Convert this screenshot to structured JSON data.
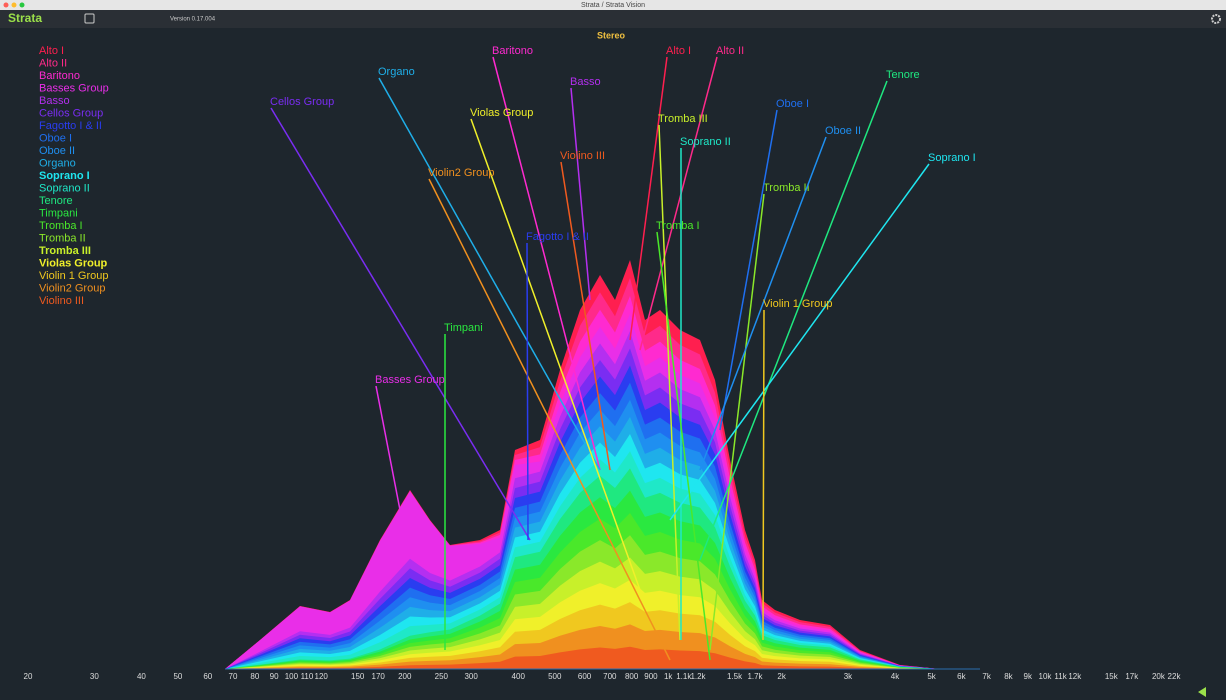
{
  "window": {
    "title": "Strata / Strata Vision"
  },
  "toolbar": {
    "app_name": "Strata",
    "version": "Version 0.17.004"
  },
  "chart_data": {
    "type": "area",
    "title": "Stereo",
    "log_x": true,
    "stacked": true,
    "xlim": [
      20,
      22000
    ],
    "xticks": [
      20,
      30,
      40,
      50,
      60,
      70,
      80,
      90,
      100,
      110,
      120,
      150,
      170,
      200,
      250,
      300,
      400,
      500,
      600,
      700,
      800,
      900,
      {
        "value": 1000,
        "label": "1k"
      },
      {
        "value": 1100,
        "label": "1.1k"
      },
      {
        "value": 1200,
        "label": "1.2k"
      },
      {
        "value": 1500,
        "label": "1.5k"
      },
      {
        "value": 1700,
        "label": "1.7k"
      },
      {
        "value": 2000,
        "label": "2k"
      },
      {
        "value": 3000,
        "label": "3k"
      },
      {
        "value": 4000,
        "label": "4k"
      },
      {
        "value": 5000,
        "label": "5k"
      },
      {
        "value": 6000,
        "label": "6k"
      },
      {
        "value": 7000,
        "label": "7k"
      },
      {
        "value": 8000,
        "label": "8k"
      },
      {
        "value": 9000,
        "label": "9k"
      },
      {
        "value": 10000,
        "label": "10k"
      },
      {
        "value": 11000,
        "label": "11k"
      },
      {
        "value": 12000,
        "label": "12k"
      },
      {
        "value": 15000,
        "label": "15k"
      },
      {
        "value": 17000,
        "label": "17k"
      },
      {
        "value": 20000,
        "label": "20k"
      },
      {
        "value": 22000,
        "label": "22k"
      }
    ],
    "series": [
      {
        "name": "Alto I",
        "color": "#ff1f4f"
      },
      {
        "name": "Alto II",
        "color": "#ff2a8a"
      },
      {
        "name": "Baritono",
        "color": "#ff2ad0"
      },
      {
        "name": "Basses Group",
        "color": "#e92ee8"
      },
      {
        "name": "Basso",
        "color": "#b42ff0"
      },
      {
        "name": "Cellos Group",
        "color": "#7a2df2"
      },
      {
        "name": "Fagotto I & II",
        "color": "#2a3df0"
      },
      {
        "name": "Oboe I",
        "color": "#1f6ff0"
      },
      {
        "name": "Oboe II",
        "color": "#1f8ff0"
      },
      {
        "name": "Organo",
        "color": "#1faee8"
      },
      {
        "name": "Soprano I",
        "color": "#1fe6f0"
      },
      {
        "name": "Soprano II",
        "color": "#1fe8c8"
      },
      {
        "name": "Tenore",
        "color": "#1fe880"
      },
      {
        "name": "Timpani",
        "color": "#2ae840"
      },
      {
        "name": "Tromba I",
        "color": "#4ae82a"
      },
      {
        "name": "Tromba II",
        "color": "#8ae82a"
      },
      {
        "name": "Tromba III",
        "color": "#c8f02a"
      },
      {
        "name": "Violas Group",
        "color": "#f0f02a"
      },
      {
        "name": "Violin 1 Group",
        "color": "#f0c81f"
      },
      {
        "name": "Violin2 Group",
        "color": "#f0901f"
      },
      {
        "name": "Violino III",
        "color": "#f05a1f"
      }
    ]
  }
}
